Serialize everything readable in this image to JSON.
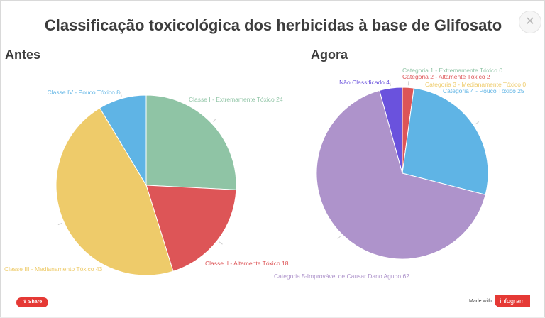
{
  "title": "Classificação toxicológica dos herbicidas à base de Glifosato",
  "close_glyph": "✕",
  "footer": {
    "share_label": "Share",
    "made_with": "Made with",
    "brand": "infogram"
  },
  "chart_data": [
    {
      "type": "pie",
      "title": "Antes",
      "slices": [
        {
          "label": "Classe I - Extremamente Tóxico",
          "value": 24,
          "color": "#8fc4a5"
        },
        {
          "label": "Classe II - Altamente Tóxico",
          "value": 18,
          "color": "#dd5557"
        },
        {
          "label": "Classe III - Medianamento Tóxico",
          "value": 43,
          "color": "#eecb6a"
        },
        {
          "label": "Classe IV - Pouco Tóxico",
          "value": 8,
          "color": "#5fb4e5"
        }
      ]
    },
    {
      "type": "pie",
      "title": "Agora",
      "slices": [
        {
          "label": "Categoria 1 - Extremamente Tóxico",
          "value": 0,
          "color": "#8fc4a5"
        },
        {
          "label": "Categoria 2 - Altamente Tóxico",
          "value": 2,
          "color": "#dd5557"
        },
        {
          "label": "Categoria 3 - Medianamente Tóxico",
          "value": 0,
          "color": "#eecb6a"
        },
        {
          "label": "Categoria 4 - Pouco Tóxico",
          "value": 25,
          "color": "#5fb4e5"
        },
        {
          "label": "Categoria 5-Improvável de Causar Dano Agudo",
          "value": 62,
          "color": "#ae93cb"
        },
        {
          "label": "Não Classificado",
          "value": 4,
          "color": "#6a52dd"
        }
      ]
    }
  ]
}
